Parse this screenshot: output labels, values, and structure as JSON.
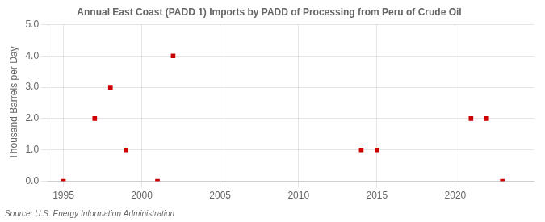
{
  "chart_data": {
    "type": "scatter",
    "title": "Annual East Coast (PADD 1) Imports by PADD of Processing from Peru of Crude Oil",
    "ylabel": "Thousand Barrels per Day",
    "source": "Source: U.S. Energy Information Administration",
    "x": [
      1995,
      1997,
      1998,
      1999,
      2001,
      2002,
      2014,
      2015,
      2021,
      2022,
      2023
    ],
    "values": [
      0.0,
      2.0,
      3.0,
      1.0,
      0.0,
      4.0,
      1.0,
      1.0,
      2.0,
      2.0,
      0.0
    ],
    "color": "#cc0000",
    "marker": "square",
    "xlim": [
      1994,
      2025
    ],
    "xticks": [
      1995,
      2000,
      2005,
      2010,
      2015,
      2020
    ],
    "ylim": [
      0,
      5
    ],
    "yticks": [
      {
        "value": 0,
        "label": "0.0"
      },
      {
        "value": 1,
        "label": "1.0"
      },
      {
        "value": 2,
        "label": "2.0"
      },
      {
        "value": 3,
        "label": "3.0"
      },
      {
        "value": 4,
        "label": "4.0"
      },
      {
        "value": 5,
        "label": "5.0"
      }
    ],
    "grid": true
  }
}
